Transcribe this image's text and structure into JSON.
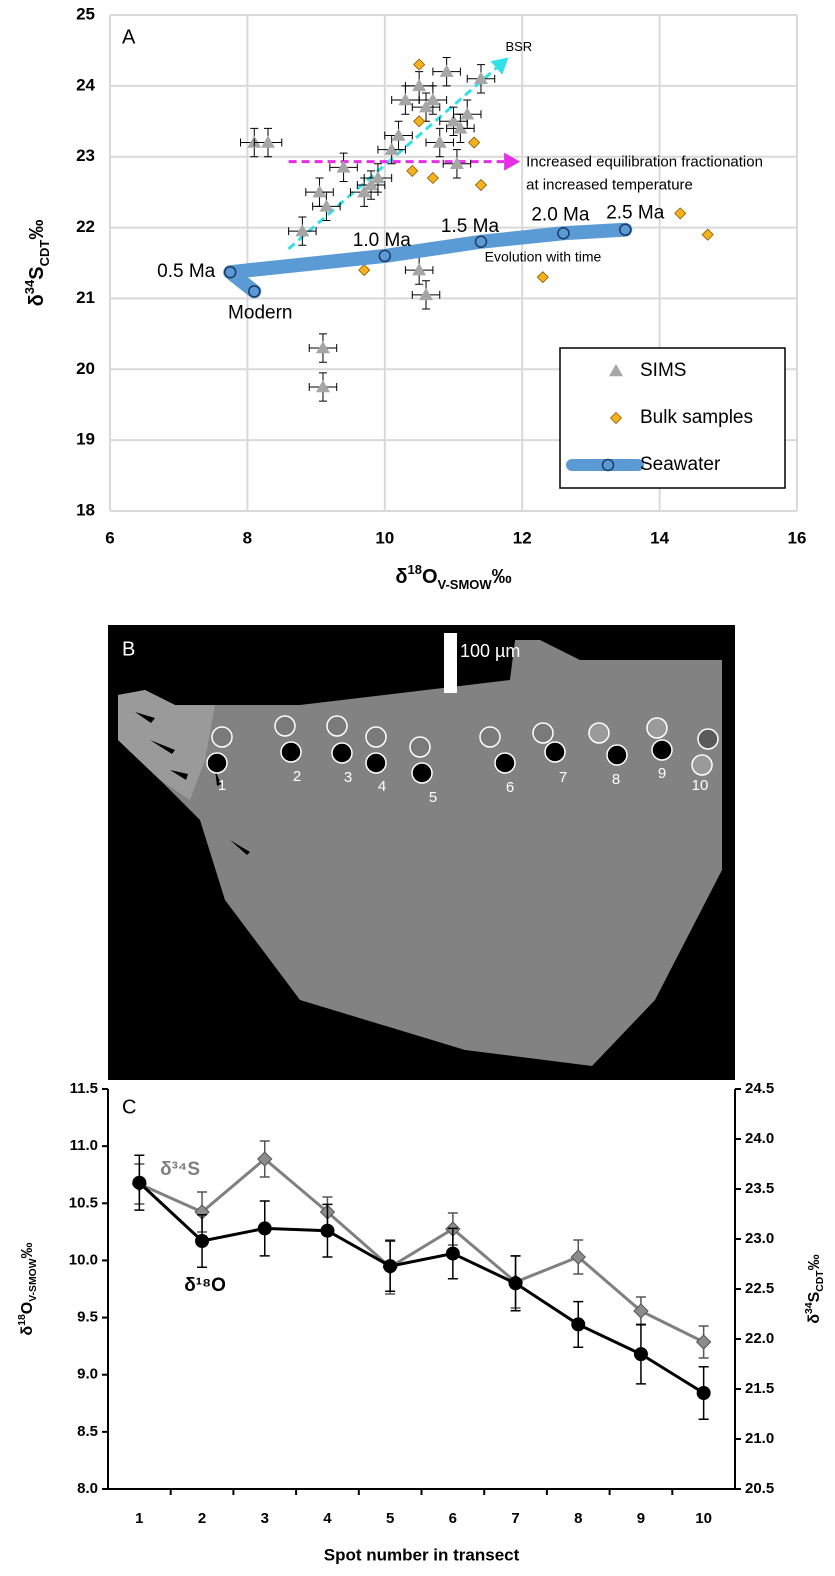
{
  "chart_data": [
    {
      "type": "scatter",
      "panel": "A",
      "xlabel": {
        "pre": "δ",
        "sup": "18",
        "main": "O",
        "sub": "V-SMOW",
        "post": "‰"
      },
      "ylabel": {
        "pre": "δ",
        "sup": "34",
        "main": "S",
        "sub": "CDT",
        "post": "‰"
      },
      "xlim": [
        6,
        16
      ],
      "xticks": [
        6,
        8,
        10,
        12,
        14,
        16
      ],
      "ylim": [
        18,
        25
      ],
      "yticks": [
        18,
        19,
        20,
        21,
        22,
        23,
        24,
        25
      ],
      "grid": true,
      "legend": "lower right",
      "series": [
        {
          "name": "SIMS",
          "marker": "triangle",
          "color": "#a6a6a6",
          "x": [
            8.1,
            8.3,
            8.8,
            9.05,
            9.15,
            9.4,
            9.7,
            9.8,
            9.9,
            10.1,
            10.2,
            10.3,
            10.5,
            10.6,
            10.7,
            10.8,
            10.9,
            11.0,
            11.1,
            11.2,
            11.05,
            10.5,
            10.6,
            9.1,
            9.1,
            11.4
          ],
          "y": [
            23.2,
            23.2,
            21.95,
            22.5,
            22.3,
            22.85,
            22.5,
            22.6,
            22.7,
            23.1,
            23.3,
            23.8,
            24.0,
            23.7,
            23.8,
            23.2,
            24.2,
            23.5,
            23.4,
            23.6,
            22.9,
            21.4,
            21.05,
            20.3,
            19.75,
            24.1
          ],
          "xerr": 0.2,
          "yerr": 0.2
        },
        {
          "name": "Bulk samples",
          "marker": "diamond",
          "color": "#f5b21c",
          "x": [
            10.5,
            10.5,
            10.4,
            10.7,
            11.3,
            11.4,
            9.7,
            12.3,
            14.3,
            14.7
          ],
          "y": [
            24.3,
            23.5,
            22.8,
            22.7,
            23.2,
            22.6,
            21.4,
            21.3,
            22.2,
            21.9
          ]
        },
        {
          "name": "Seawater",
          "marker": "circle-line",
          "color": "#5b9bd5",
          "x": [
            8.1,
            7.75,
            10.0,
            11.4,
            12.6,
            13.5
          ],
          "y": [
            21.1,
            21.37,
            21.6,
            21.8,
            21.92,
            21.97
          ],
          "point_labels": [
            "Modern",
            "0.5 Ma",
            "1.0 Ma",
            "1.5 Ma",
            "2.0 Ma",
            "2.5 Ma"
          ]
        }
      ],
      "annotations": [
        {
          "text": [
            "BSR"
          ],
          "x": [
            8.6,
            11.8
          ],
          "y": [
            21.7,
            24.4
          ],
          "color": "#33e0e8",
          "style": "dashed"
        },
        {
          "text": [
            "Increased equilibration fractionation",
            "at increased temperature"
          ],
          "x": [
            8.6,
            11.97
          ],
          "y": [
            22.93,
            22.93
          ],
          "color": "#e52ee5",
          "style": "dashed"
        },
        {
          "text": [
            "Evolution with time"
          ],
          "x": [
            11.4,
            8.84
          ],
          "y": [
            21.8,
            21.47
          ],
          "color": "#000000",
          "style": "solid"
        }
      ]
    },
    {
      "type": "line",
      "panel": "C",
      "categories": [
        "1",
        "2",
        "3",
        "4",
        "5",
        "6",
        "7",
        "8",
        "9",
        "10"
      ],
      "xlabel": "Spot number in transect",
      "ylabel": {
        "pre": "δ",
        "sup": "18",
        "main": "O",
        "sub": "V-SMOW",
        "post": "‰"
      },
      "y2label": {
        "pre": "δ",
        "sup": "34",
        "main": "S",
        "sub": "CDT",
        "post": "‰"
      },
      "ylim": [
        8,
        11.5
      ],
      "yticks": [
        {
          "value": 8,
          "label": "8.0"
        },
        8.5,
        {
          "value": 9,
          "label": "9.0"
        },
        9.5,
        {
          "value": 10,
          "label": "10.0"
        },
        10.5,
        {
          "value": 11,
          "label": "11.0"
        },
        11.5
      ],
      "y2lim": [
        20.5,
        24.5
      ],
      "y2ticks": [
        20.5,
        {
          "value": 21,
          "label": "21.0"
        },
        21.5,
        {
          "value": 22,
          "label": "22.0"
        },
        22.5,
        {
          "value": 23,
          "label": "23.0"
        },
        23.5,
        {
          "value": 24,
          "label": "24.0"
        },
        24.5
      ],
      "series": [
        {
          "name": "δ¹⁸O",
          "color": "#000000",
          "marker": "circle",
          "values": [
            10.68,
            10.17,
            10.28,
            10.26,
            9.95,
            10.06,
            9.8,
            9.44,
            9.18,
            8.84
          ],
          "errors": [
            0.24,
            0.23,
            0.24,
            0.23,
            0.22,
            0.22,
            0.24,
            0.2,
            0.26,
            0.23
          ]
        },
        {
          "name": "δ³⁴S",
          "color": "#808080",
          "marker": "diamond",
          "axis": "y2",
          "values": [
            23.55,
            23.27,
            23.8,
            23.27,
            22.72,
            23.1,
            22.57,
            22.82,
            22.28,
            21.97
          ],
          "errors": [
            0.2,
            0.2,
            0.18,
            0.15,
            0.27,
            0.16,
            0.26,
            0.17,
            0.14,
            0.16
          ]
        }
      ]
    }
  ],
  "image_panel": {
    "panel": "B",
    "scale_bar": "100 µm",
    "spot_labels": [
      "1",
      "2",
      "3",
      "4",
      "5",
      "6",
      "7",
      "8",
      "9",
      "10"
    ]
  }
}
